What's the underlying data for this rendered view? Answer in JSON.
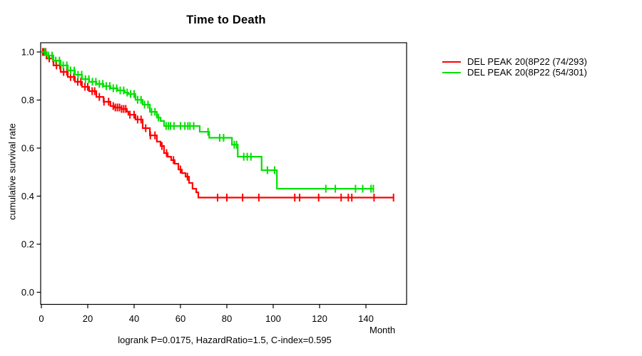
{
  "chart_data": {
    "type": "line",
    "variant": "kaplan-meier-survival-step",
    "title": "Time to Death",
    "xlabel": "Month",
    "ylabel": "cumulative survival rate",
    "footnote": "logrank P=0.0175, HazardRatio=1.5, C-index=0.595",
    "xlim": [
      0,
      157
    ],
    "ylim": [
      0.0,
      1.0
    ],
    "x_ticks": [
      0,
      20,
      40,
      60,
      80,
      100,
      120,
      140
    ],
    "y_ticks": [
      0.0,
      0.2,
      0.4,
      0.6,
      0.8,
      1.0
    ],
    "y_tick_labels": [
      "0.0",
      "0.2",
      "0.4",
      "0.6",
      "0.8",
      "1.0"
    ],
    "grid": false,
    "legend_position": "outside-top-right",
    "axis_color": "#000000",
    "censor_mark": "vertical-tick",
    "series": [
      {
        "name": "DEL PEAK 20(8P22 (74/293)",
        "color": "#ff0000",
        "points": [
          [
            0,
            1.0
          ],
          [
            2.2,
            0.973
          ],
          [
            5.2,
            0.944
          ],
          [
            8.3,
            0.917
          ],
          [
            11.4,
            0.896
          ],
          [
            14.5,
            0.876
          ],
          [
            17.5,
            0.855
          ],
          [
            20.6,
            0.837
          ],
          [
            23.7,
            0.813
          ],
          [
            26.8,
            0.793
          ],
          [
            29.8,
            0.775
          ],
          [
            31.4,
            0.769
          ],
          [
            34.5,
            0.763
          ],
          [
            36.9,
            0.752
          ],
          [
            37.5,
            0.739
          ],
          [
            40.6,
            0.719
          ],
          [
            43.7,
            0.683
          ],
          [
            46.8,
            0.653
          ],
          [
            49.8,
            0.627
          ],
          [
            51.4,
            0.609
          ],
          [
            52.9,
            0.579
          ],
          [
            54.5,
            0.564
          ],
          [
            56,
            0.55
          ],
          [
            57.5,
            0.535
          ],
          [
            59.1,
            0.511
          ],
          [
            60.6,
            0.496
          ],
          [
            62.2,
            0.481
          ],
          [
            63.7,
            0.455
          ],
          [
            65.2,
            0.431
          ],
          [
            66.8,
            0.416
          ],
          [
            67.7,
            0.394
          ],
          [
            151.9,
            0.394
          ]
        ],
        "censor_months": [
          0.6,
          1.2,
          1.8,
          3.4,
          5,
          6.5,
          8,
          9.6,
          11,
          12.6,
          14,
          15.7,
          17,
          18.8,
          20,
          21.9,
          23,
          25,
          27,
          29,
          31,
          31.9,
          32.8,
          33.7,
          34.6,
          35.5,
          36.4,
          38.2,
          40,
          41.5,
          43,
          45,
          47,
          49,
          52,
          54,
          57,
          60,
          63,
          76,
          80,
          86.8,
          93.8,
          109.3,
          111.4,
          119.6,
          129.3,
          132.4,
          133.9,
          143.5,
          151.9
        ]
      },
      {
        "name": "DEL PEAK 20(8P22 (54/301)",
        "color": "#00e000",
        "points": [
          [
            0,
            1.0
          ],
          [
            2.2,
            0.985
          ],
          [
            5.2,
            0.964
          ],
          [
            8.3,
            0.944
          ],
          [
            11.4,
            0.923
          ],
          [
            14.5,
            0.905
          ],
          [
            17.5,
            0.887
          ],
          [
            20.6,
            0.876
          ],
          [
            23.7,
            0.867
          ],
          [
            26.8,
            0.858
          ],
          [
            29.8,
            0.849
          ],
          [
            32.9,
            0.84
          ],
          [
            36,
            0.831
          ],
          [
            37.5,
            0.825
          ],
          [
            40.6,
            0.801
          ],
          [
            43.7,
            0.781
          ],
          [
            46.8,
            0.751
          ],
          [
            49.8,
            0.727
          ],
          [
            51.4,
            0.713
          ],
          [
            52.9,
            0.692
          ],
          [
            68.3,
            0.668
          ],
          [
            72.4,
            0.643
          ],
          [
            82.2,
            0.614
          ],
          [
            84.7,
            0.564
          ],
          [
            95,
            0.508
          ],
          [
            101.6,
            0.431
          ],
          [
            143.2,
            0.431
          ]
        ],
        "censor_months": [
          1.5,
          3,
          4.6,
          6.2,
          7.8,
          9.4,
          11,
          12.6,
          14.2,
          15.8,
          17.4,
          19,
          20.5,
          22,
          23.5,
          25,
          26.5,
          28,
          29.5,
          31,
          32.5,
          34,
          35.5,
          37,
          38.5,
          40,
          41.5,
          43,
          44.5,
          46,
          47.5,
          49,
          50.5,
          53.8,
          54.8,
          55.7,
          57.2,
          60,
          61.9,
          63.2,
          64.1,
          65.7,
          71.9,
          76.9,
          78.6,
          83.2,
          84.2,
          87.3,
          88.8,
          90.4,
          97.5,
          100.6,
          122.7,
          126.8,
          135.5,
          138.6,
          142.2,
          143.2
        ]
      }
    ]
  }
}
